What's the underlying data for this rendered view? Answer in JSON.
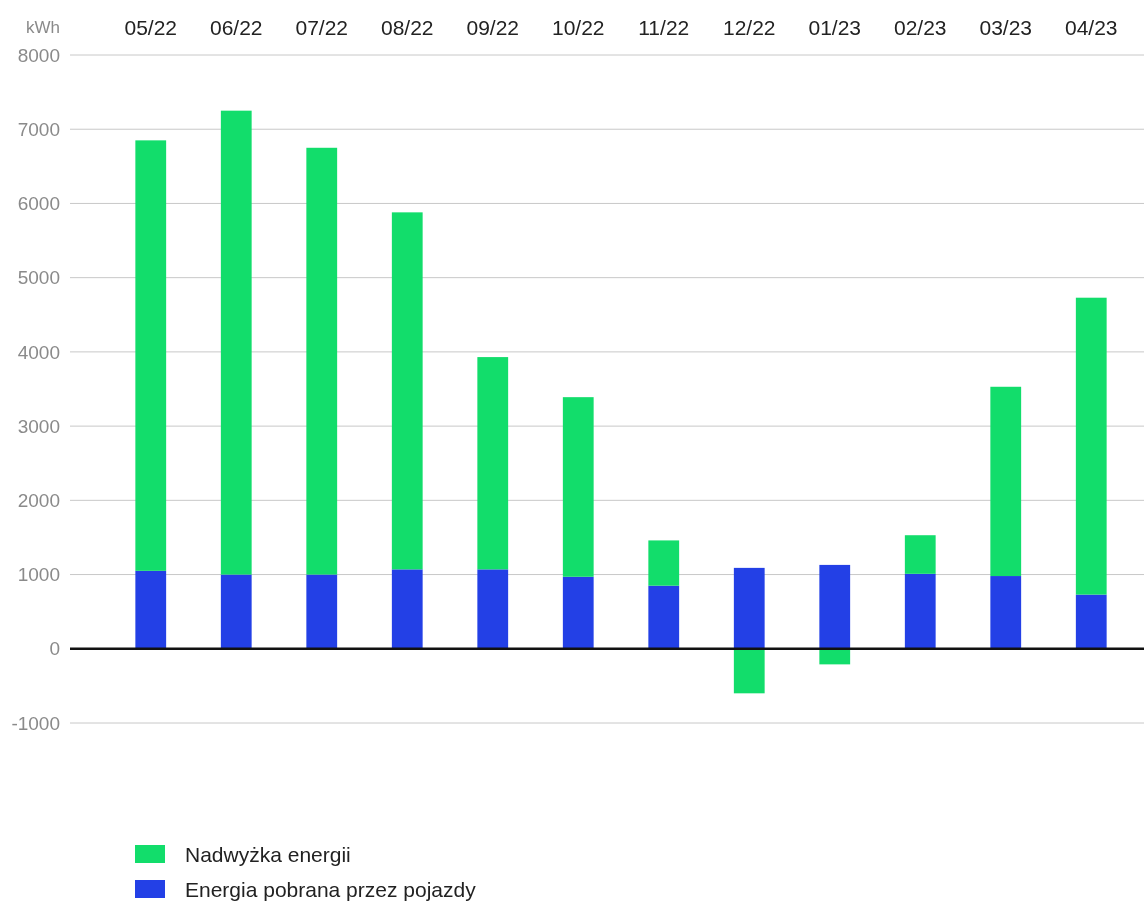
{
  "chart_data": {
    "type": "bar",
    "stacked": true,
    "ylabel": "kWh",
    "categories": [
      "05/22",
      "06/22",
      "07/22",
      "08/22",
      "09/22",
      "10/22",
      "11/22",
      "12/22",
      "01/23",
      "02/23",
      "03/23",
      "04/23"
    ],
    "series": [
      {
        "name": "Energia pobrana przez pojazdy",
        "color": "#2340e6",
        "values": [
          1050,
          1000,
          1000,
          1070,
          1070,
          970,
          850,
          1090,
          1130,
          1010,
          980,
          730
        ]
      },
      {
        "name": "Nadwyżka energii",
        "color": "#12dd6b",
        "values": [
          5800,
          6250,
          5750,
          4810,
          2860,
          2420,
          610,
          -600,
          -210,
          520,
          2550,
          4000
        ]
      }
    ],
    "ylim": [
      -1000,
      8000
    ],
    "yticks": [
      -1000,
      0,
      1000,
      2000,
      3000,
      4000,
      5000,
      6000,
      7000,
      8000
    ],
    "grid": "y",
    "legend": "bottom"
  }
}
